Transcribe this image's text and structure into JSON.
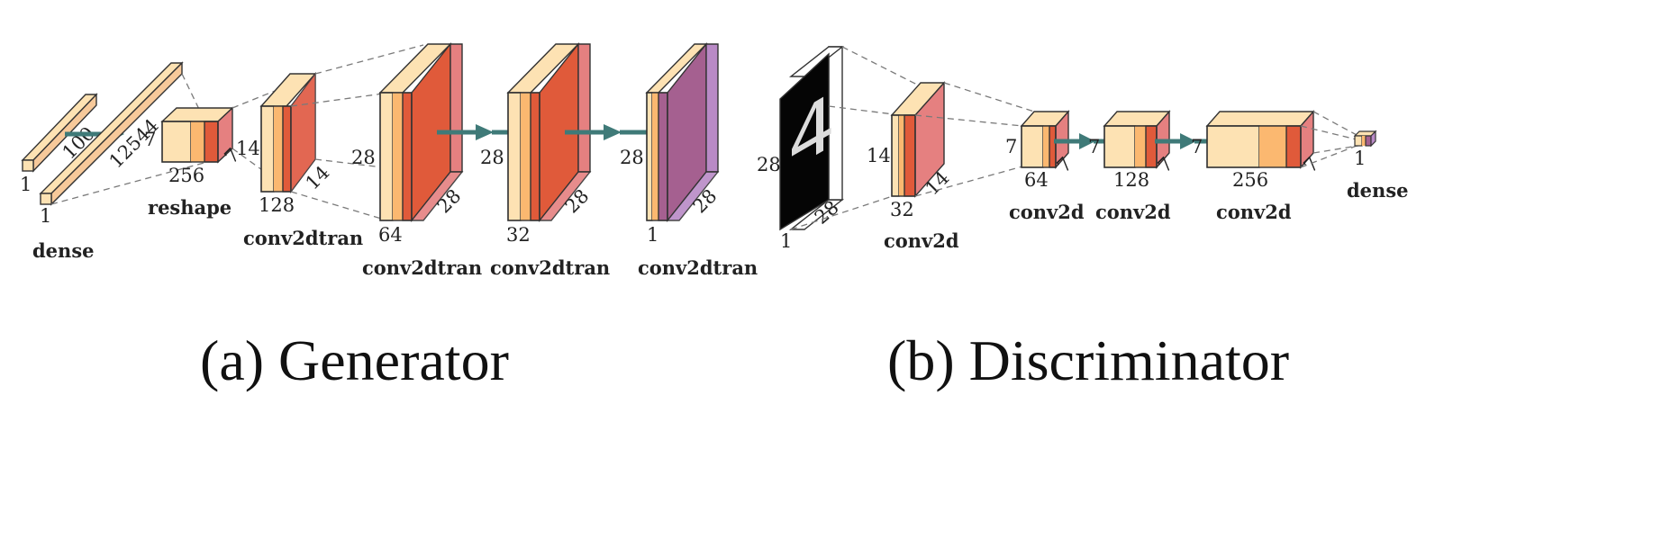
{
  "generator": {
    "caption": "(a) Generator",
    "layers": {
      "dense1": {
        "label": "dense",
        "size_label": "1",
        "length_label": "100"
      },
      "dense2": {
        "size_label": "1",
        "length_label": "12544"
      },
      "reshape": {
        "label": "reshape",
        "hw_label": "7",
        "depth_label": "7",
        "channels_label": "256"
      },
      "convt1": {
        "label": "conv2dtran",
        "h_label": "14",
        "w_label": "14",
        "channels_label": "128"
      },
      "convt2": {
        "label": "conv2dtran",
        "h_label": "28",
        "w_label": "28",
        "channels_label": "64"
      },
      "convt3": {
        "label": "conv2dtran",
        "h_label": "28",
        "w_label": "28",
        "channels_label": "32"
      },
      "convt4": {
        "label": "conv2dtran",
        "h_label": "28",
        "w_label": "28",
        "channels_label": "1"
      }
    }
  },
  "discriminator": {
    "caption": "(b) Discriminator",
    "layers": {
      "input": {
        "h_label": "28",
        "w_label": "28",
        "channels_label": "1",
        "digit": "4"
      },
      "conv1": {
        "label": "conv2d",
        "h_label": "14",
        "w_label": "14",
        "channels_label": "32"
      },
      "conv2": {
        "label": "conv2d",
        "h_label": "7",
        "w_label": "7",
        "channels_label": "64"
      },
      "conv3": {
        "label": "conv2d",
        "h_label": "7",
        "w_label": "7",
        "channels_label": "128"
      },
      "conv4": {
        "label": "conv2d",
        "h_label": "7",
        "w_label": "7",
        "channels_label": "256"
      },
      "dense": {
        "label": "dense",
        "size_label": "1"
      }
    }
  },
  "colors": {
    "light": "#fde2b3",
    "mid": "#fbb870",
    "red": "#e05a3a",
    "red_side": "#e58080",
    "purple": "#a56090",
    "purple_side": "#b98ac6",
    "arrow": "#3f7a78"
  }
}
